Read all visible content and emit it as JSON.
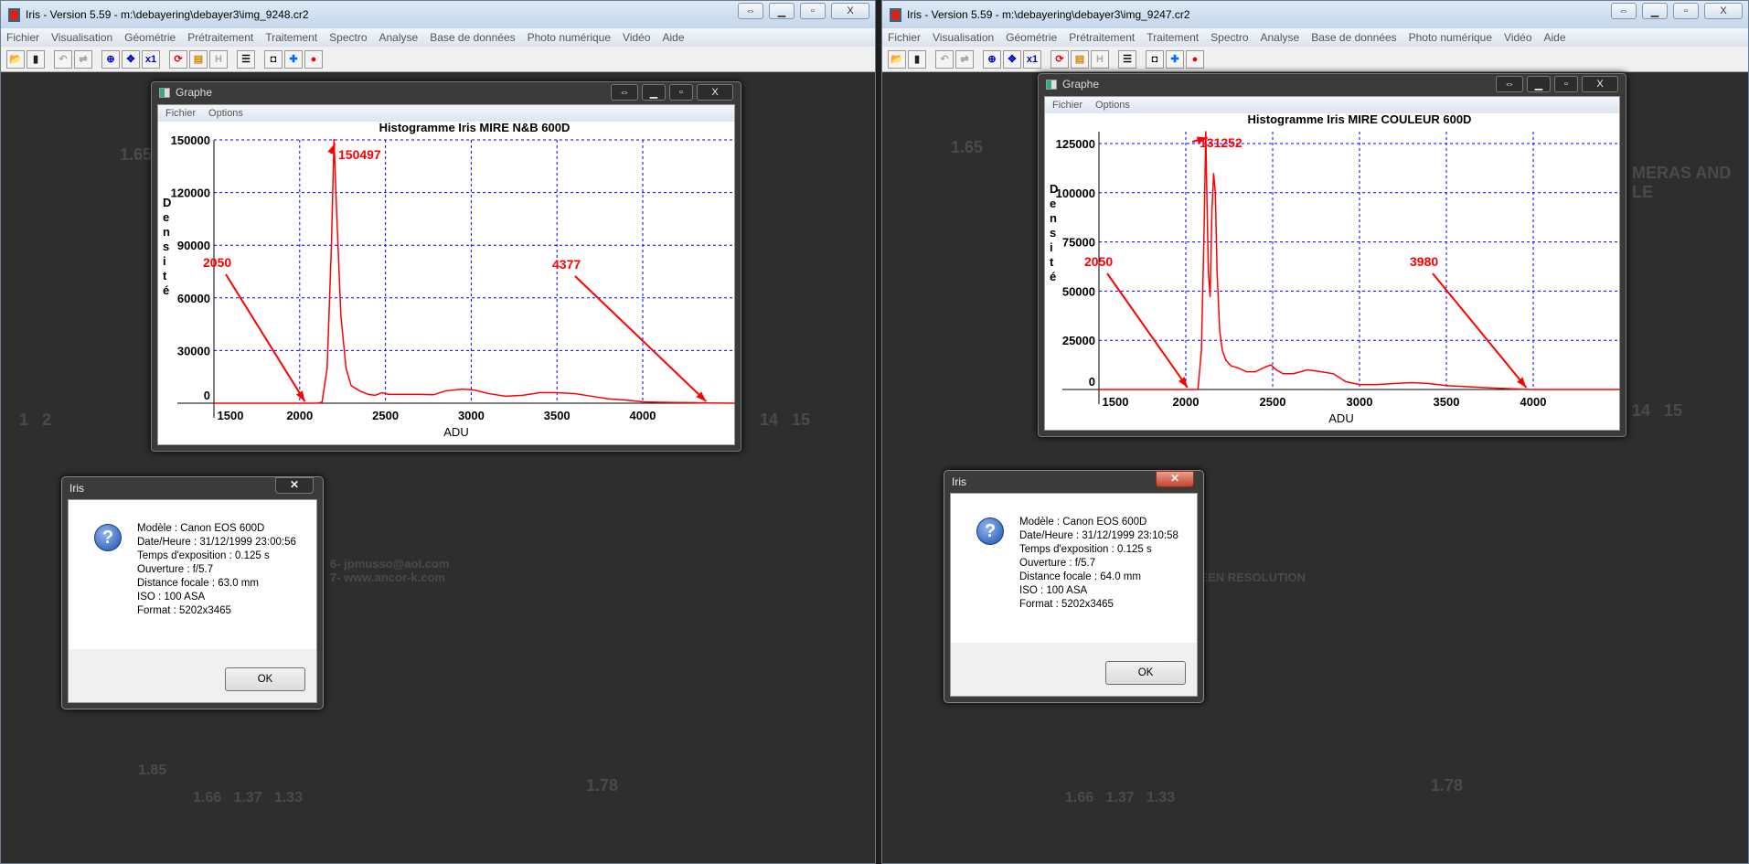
{
  "windows": [
    {
      "title": "Iris - Version 5.59 - m:\\debayering\\debayer3\\img_9248.cr2",
      "menu": [
        "Fichier",
        "Visualisation",
        "Géométrie",
        "Prétraitement",
        "Traitement",
        "Spectro",
        "Analyse",
        "Base de données",
        "Photo numérique",
        "Vidéo",
        "Aide"
      ],
      "graph": {
        "title": "Graphe",
        "menu": [
          "Fichier",
          "Options"
        ]
      },
      "dialog": {
        "title": "Iris",
        "lines": [
          "Modèle : Canon EOS 600D",
          "Date/Heure : 31/12/1999 23:00:56",
          "Temps d'exposition :  0.125 s",
          "Ouverture : f/5.7",
          "Distance focale : 63.0 mm",
          "ISO : 100 ASA",
          "Format : 5202x3465"
        ],
        "ok": "OK"
      }
    },
    {
      "title": "Iris - Version 5.59 - m:\\debayering\\debayer3\\img_9247.cr2",
      "menu": [
        "Fichier",
        "Visualisation",
        "Géométrie",
        "Prétraitement",
        "Traitement",
        "Spectro",
        "Analyse",
        "Base de données",
        "Photo numérique",
        "Vidéo",
        "Aide"
      ],
      "graph": {
        "title": "Graphe",
        "menu": [
          "Fichier",
          "Options"
        ]
      },
      "dialog": {
        "title": "Iris",
        "lines": [
          "Modèle : Canon EOS 600D",
          "Date/Heure : 31/12/1999 23:10:58",
          "Temps d'exposition :  0.125 s",
          "Ouverture : f/5.7",
          "Distance focale : 64.0 mm",
          "ISO : 100 ASA",
          "Format : 5202x3465"
        ],
        "ok": "OK"
      }
    }
  ],
  "toolbar_icons": [
    "open-folder-icon",
    "save-icon",
    "undo-icon",
    "adjust-icon",
    "zoom-fit-icon",
    "move-icon",
    "x1-zoom-icon",
    "refresh-icon",
    "palette-icon",
    "histogram-h-icon",
    "list-icon",
    "camera-icon",
    "cross-icon",
    "record-icon"
  ],
  "colors": {
    "curve": "#ff0000",
    "grid": "#0000ff",
    "annotation": "#ff0000"
  },
  "chart_data": [
    {
      "type": "line",
      "title": "Histogramme Iris MIRE  N&B 600D",
      "xlabel": "ADU",
      "ylabel": "Densité",
      "xticks": [
        1500,
        2000,
        2500,
        3000,
        3500,
        4000
      ],
      "yticks": [
        0,
        30000,
        60000,
        90000,
        120000,
        150000
      ],
      "ylim": [
        0,
        150000
      ],
      "grid": true,
      "x": [
        1500,
        2100,
        2130,
        2160,
        2185,
        2200,
        2215,
        2240,
        2270,
        2300,
        2350,
        2400,
        2440,
        2480,
        2520,
        2600,
        2700,
        2780,
        2850,
        2950,
        3020,
        3100,
        3200,
        3300,
        3400,
        3500,
        3600,
        3700,
        3800,
        3900,
        4000,
        4100,
        4200,
        4300,
        4377,
        4580
      ],
      "y": [
        0,
        0,
        500,
        20000,
        90000,
        150497,
        110000,
        50000,
        20000,
        10000,
        7000,
        5000,
        4500,
        6000,
        5000,
        5000,
        5000,
        4800,
        7000,
        8000,
        7500,
        5500,
        4000,
        4500,
        6000,
        6000,
        5500,
        4000,
        2500,
        1800,
        800,
        500,
        400,
        300,
        100,
        0
      ],
      "annotations": [
        {
          "label": "150497",
          "x": 2205,
          "y": 148000
        },
        {
          "label": "2050",
          "x": 2030,
          "y": 1000
        },
        {
          "label": "4377",
          "x": 4370,
          "y": 1000
        }
      ]
    },
    {
      "type": "line",
      "title": "Histogramme Iris MIRE COULEUR 600D",
      "xlabel": "ADU",
      "ylabel": "Densité",
      "xticks": [
        1500,
        2000,
        2500,
        3000,
        3500,
        4000
      ],
      "yticks": [
        0,
        25000,
        50000,
        75000,
        100000,
        125000
      ],
      "ylim": [
        0,
        131252
      ],
      "grid": true,
      "x": [
        1500,
        2070,
        2090,
        2105,
        2115,
        2122,
        2130,
        2140,
        2150,
        2160,
        2170,
        2180,
        2195,
        2210,
        2230,
        2260,
        2300,
        2350,
        2400,
        2460,
        2490,
        2520,
        2560,
        2620,
        2700,
        2780,
        2850,
        2920,
        3000,
        3100,
        3200,
        3300,
        3400,
        3500,
        3600,
        3750,
        3900,
        3980,
        4590
      ],
      "y": [
        0,
        0,
        20000,
        80000,
        131252,
        95000,
        60000,
        47000,
        90000,
        110000,
        100000,
        60000,
        30000,
        20000,
        15000,
        12000,
        11000,
        9000,
        9000,
        11500,
        12500,
        10000,
        8000,
        8000,
        10000,
        9000,
        8000,
        4000,
        2500,
        2500,
        3000,
        3500,
        3000,
        2000,
        1500,
        800,
        300,
        0,
        0
      ],
      "annotations": [
        {
          "label": "131252",
          "x": 2125,
          "y": 128000
        },
        {
          "label": "2050",
          "x": 2010,
          "y": 1000
        },
        {
          "label": "3980",
          "x": 3960,
          "y": 1000
        }
      ]
    }
  ]
}
